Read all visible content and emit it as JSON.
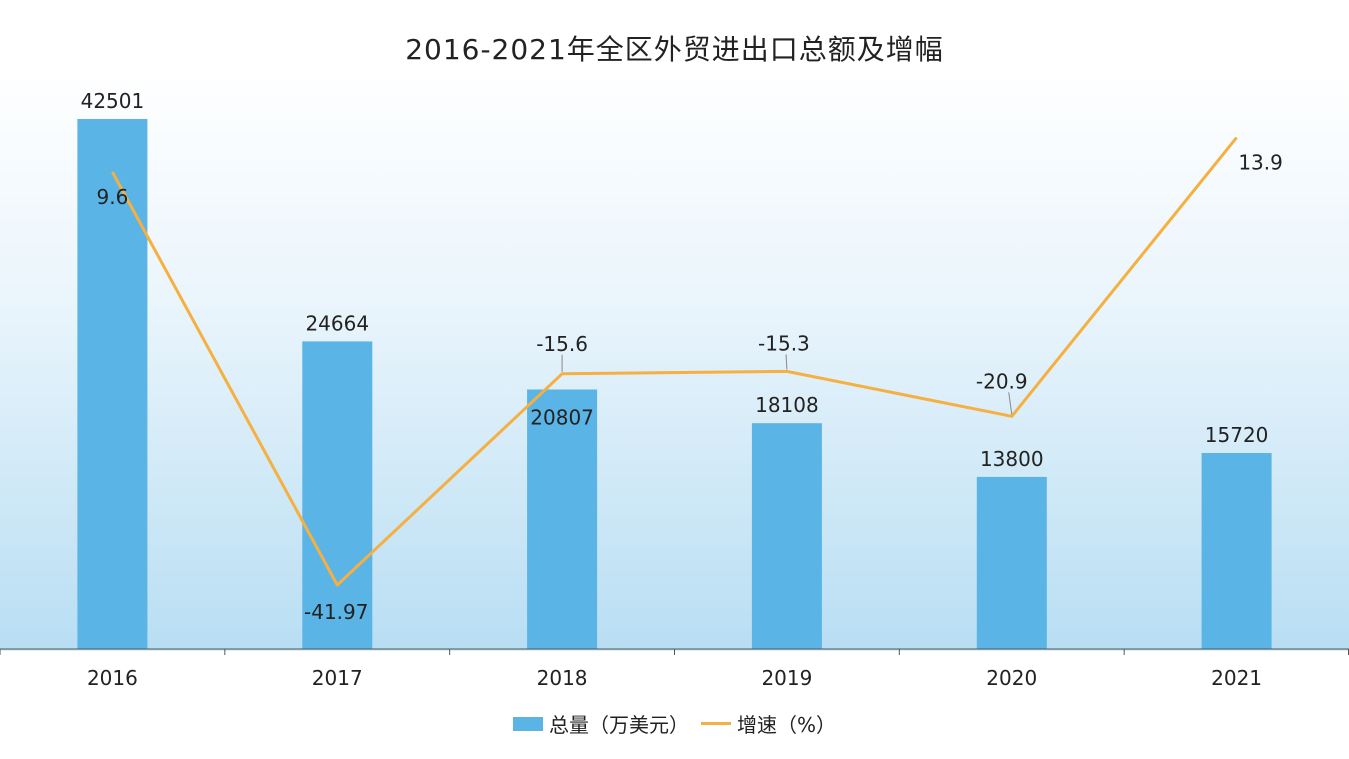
{
  "chart_data": {
    "type": "bar",
    "title": "2016-2021年全区外贸进出口总额及增幅",
    "categories": [
      "2016",
      "2017",
      "2018",
      "2019",
      "2020",
      "2021"
    ],
    "series": [
      {
        "name": "总量（万美元）",
        "type": "bar",
        "axis": "left",
        "values": [
          42501,
          24664,
          20807,
          18108,
          13800,
          15720
        ],
        "labels": [
          "42501",
          "24664",
          "20807",
          "18108",
          "13800",
          "15720"
        ]
      },
      {
        "name": "增速（%）",
        "type": "line",
        "axis": "right",
        "values": [
          9.6,
          -41.97,
          -15.6,
          -15.3,
          -20.9,
          13.9
        ],
        "labels": [
          "9.6",
          "-41.97",
          "-15.6",
          "-15.3",
          "-20.9",
          "13.9"
        ]
      }
    ],
    "xlabel": "",
    "ylabel": "",
    "ylim_left": [
      0,
      42501
    ],
    "ylim_right": [
      -45,
      20
    ],
    "grid": false,
    "legend_position": "bottom",
    "colors": {
      "bar": "#5ab4e5",
      "line": "#f5b041"
    }
  }
}
